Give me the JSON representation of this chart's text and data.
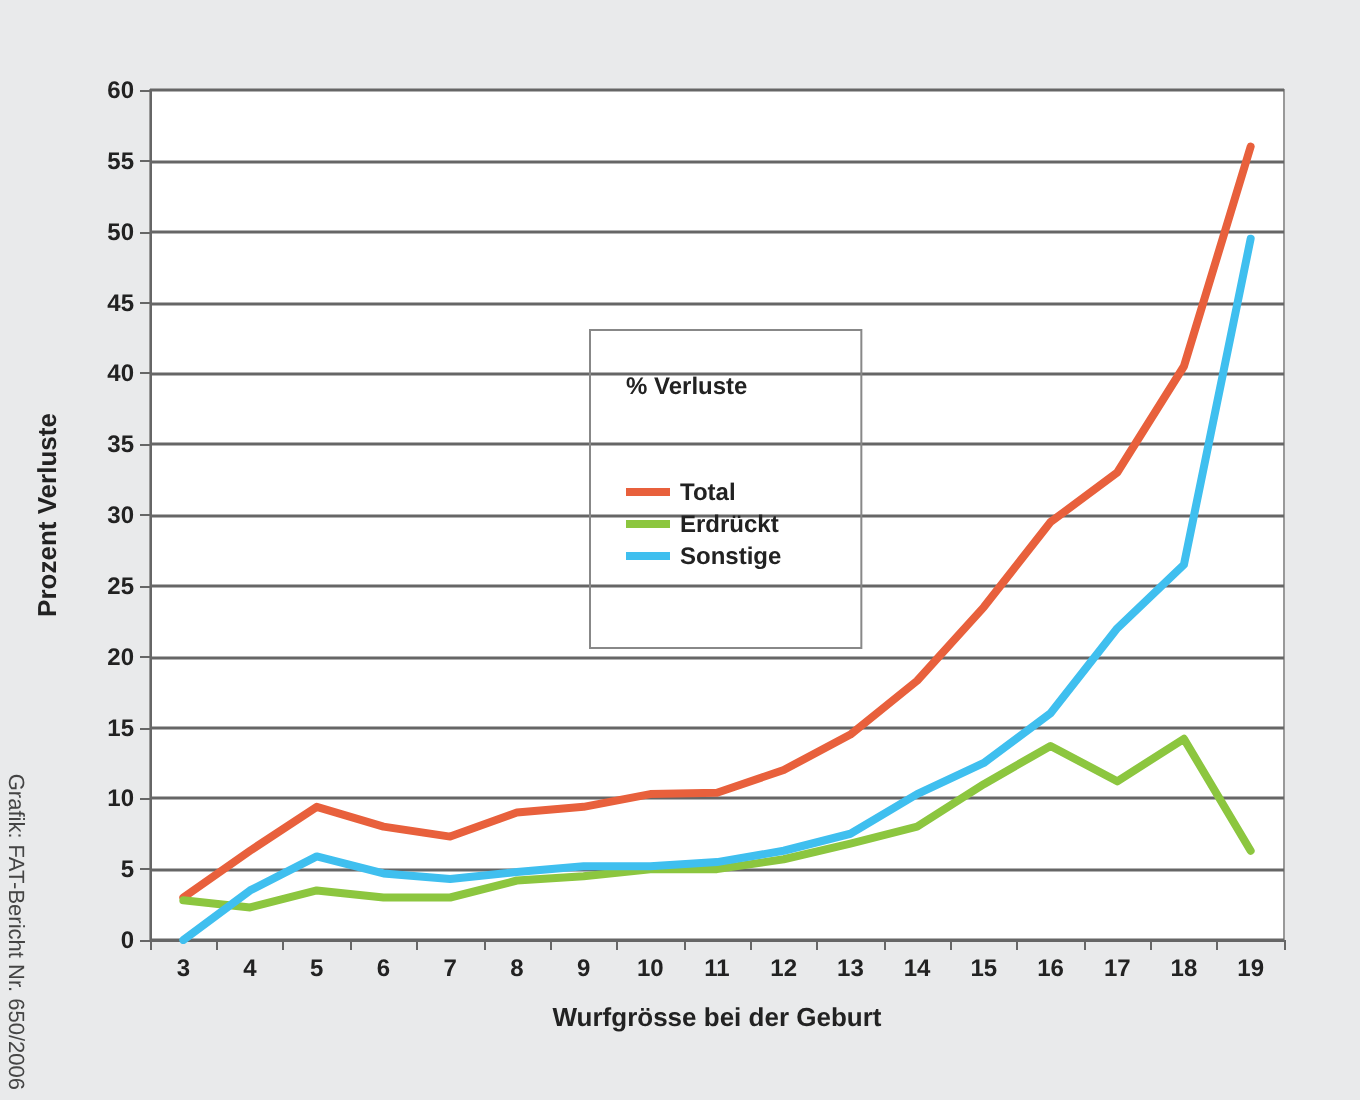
{
  "chart_data": {
    "type": "line",
    "xlabel": "Wurfgrösse bei der Geburt",
    "ylabel": "Prozent Verluste",
    "legend_title": "% Verluste",
    "categories": [
      "3",
      "4",
      "5",
      "6",
      "7",
      "8",
      "9",
      "10",
      "11",
      "12",
      "13",
      "14",
      "15",
      "16",
      "17",
      "18",
      "19"
    ],
    "series": [
      {
        "name": "Total",
        "color": "#e8603c",
        "values": [
          3,
          6.3,
          9.4,
          8,
          7.3,
          9,
          9.4,
          10.3,
          10.4,
          12,
          14.5,
          18.3,
          23.5,
          29.5,
          33,
          40.5,
          56
        ]
      },
      {
        "name": "Erdrückt",
        "color": "#8cc63f",
        "values": [
          2.8,
          2.3,
          3.5,
          3,
          3,
          4.2,
          4.5,
          5,
          5,
          5.7,
          6.8,
          8,
          11,
          13.7,
          11.2,
          14.2,
          6.3
        ]
      },
      {
        "name": "Sonstige",
        "color": "#3fbfef",
        "values": [
          0,
          3.5,
          5.9,
          4.7,
          4.3,
          4.8,
          5.2,
          5.2,
          5.5,
          6.3,
          7.5,
          10.3,
          12.5,
          16,
          22,
          26.5,
          49.5
        ]
      }
    ],
    "ylim": [
      0,
      60
    ],
    "yticks": [
      0,
      5,
      10,
      15,
      20,
      25,
      30,
      35,
      40,
      45,
      50,
      55,
      60
    ],
    "grid": "y",
    "legend": "center",
    "marker": "none",
    "line_style": "solid",
    "annotations": [
      "Grafik: FAT-Bericht Nr. 650/2006"
    ]
  }
}
